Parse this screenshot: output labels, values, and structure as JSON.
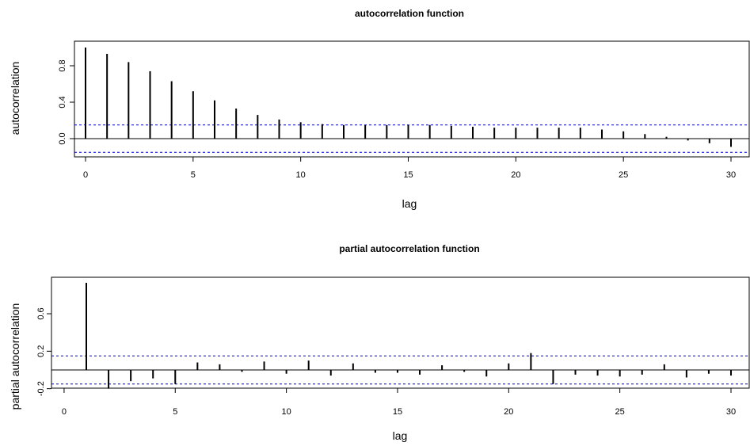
{
  "chart_data": [
    {
      "type": "bar",
      "title": "autocorrelation function",
      "xlabel": "lag",
      "ylabel": "autocorrelation",
      "xlim": [
        -1,
        31
      ],
      "ylim": [
        -0.19,
        1.0
      ],
      "xticks": [
        "0",
        "5",
        "10",
        "15",
        "20",
        "25",
        "30"
      ],
      "yticks": [
        "0.0",
        "0.4",
        "0.8"
      ],
      "confidence_bound": 0.15,
      "grid": false,
      "legend": "none",
      "x": [
        0,
        1,
        2,
        3,
        4,
        5,
        6,
        7,
        8,
        9,
        10,
        11,
        12,
        13,
        14,
        15,
        16,
        17,
        18,
        19,
        20,
        21,
        22,
        23,
        24,
        25,
        26,
        27,
        28,
        29,
        30
      ],
      "values": [
        1.0,
        0.93,
        0.84,
        0.74,
        0.63,
        0.52,
        0.42,
        0.33,
        0.26,
        0.21,
        0.18,
        0.16,
        0.15,
        0.15,
        0.15,
        0.15,
        0.15,
        0.14,
        0.13,
        0.12,
        0.12,
        0.12,
        0.12,
        0.12,
        0.1,
        0.08,
        0.05,
        0.02,
        -0.02,
        -0.05,
        -0.09
      ],
      "colors": {
        "bars": "#000000",
        "bounds": "#0000cc",
        "zero_line": "#000000"
      }
    },
    {
      "type": "bar",
      "title": "partial autocorrelation function",
      "xlabel": "lag",
      "ylabel": "partial autocorrelation",
      "xlim": [
        -0.1,
        31
      ],
      "ylim": [
        -0.2,
        0.95
      ],
      "xticks": [
        "0",
        "5",
        "10",
        "15",
        "20",
        "25",
        "30"
      ],
      "yticks": [
        "-0.2",
        "0.2",
        "0.6"
      ],
      "confidence_bound": 0.15,
      "grid": false,
      "legend": "none",
      "x": [
        1,
        2,
        3,
        4,
        5,
        6,
        7,
        8,
        9,
        10,
        11,
        12,
        13,
        14,
        15,
        16,
        17,
        18,
        19,
        20,
        21,
        22,
        23,
        24,
        25,
        26,
        27,
        28,
        29,
        30
      ],
      "values": [
        0.93,
        -0.2,
        -0.12,
        -0.09,
        -0.15,
        0.08,
        0.06,
        -0.02,
        0.09,
        -0.04,
        0.1,
        -0.06,
        0.07,
        -0.03,
        -0.03,
        -0.05,
        0.05,
        -0.02,
        -0.07,
        0.07,
        0.18,
        -0.15,
        -0.05,
        -0.06,
        -0.07,
        -0.05,
        0.06,
        -0.08,
        -0.04,
        -0.06
      ],
      "colors": {
        "bars": "#000000",
        "bounds": "#0000cc",
        "zero_line": "#000000"
      }
    }
  ]
}
